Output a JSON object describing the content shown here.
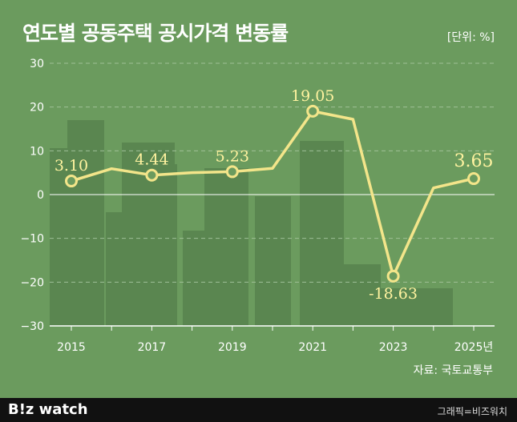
{
  "title": "연도별 공동주택 공시가격 변동률",
  "unit_label": "[단위: %]",
  "source": "자료: 국토교통부",
  "brand": "B!z watch",
  "credit": "그래픽=비즈워치",
  "colors": {
    "background": "#6b9b5e",
    "line": "#f3e58a",
    "marker_fill": "#6b9b5e",
    "label": "#fff3a0",
    "buildings": "#5a8650",
    "axis": "#ffffff",
    "grid": "#9fc096"
  },
  "chart_data": {
    "type": "line",
    "x": [
      2015,
      2016,
      2017,
      2018,
      2019,
      2020,
      2021,
      2022,
      2023,
      2024,
      2025
    ],
    "values": [
      3.1,
      5.9,
      4.44,
      5.02,
      5.23,
      5.98,
      19.05,
      17.2,
      -18.63,
      1.52,
      3.65
    ],
    "labeled_points": [
      {
        "x": 2015,
        "value": 3.1,
        "label": "3.10"
      },
      {
        "x": 2017,
        "value": 4.44,
        "label": "4.44"
      },
      {
        "x": 2019,
        "value": 5.23,
        "label": "5.23"
      },
      {
        "x": 2021,
        "value": 19.05,
        "label": "19.05"
      },
      {
        "x": 2023,
        "value": -18.63,
        "label": "-18.63"
      },
      {
        "x": 2025,
        "value": 3.65,
        "label": "3.65"
      }
    ],
    "x_ticks": [
      {
        "x": 2015,
        "label": "2015"
      },
      {
        "x": 2017,
        "label": "2017"
      },
      {
        "x": 2019,
        "label": "2019"
      },
      {
        "x": 2021,
        "label": "2021"
      },
      {
        "x": 2023,
        "label": "2023"
      },
      {
        "x": 2025,
        "label": "2025년"
      }
    ],
    "y_ticks": [
      {
        "value": 30,
        "label": "30"
      },
      {
        "value": 20,
        "label": "20"
      },
      {
        "value": 10,
        "label": "10"
      },
      {
        "value": 0,
        "label": "0"
      },
      {
        "value": -10,
        "label": "−10"
      },
      {
        "value": -20,
        "label": "−20"
      },
      {
        "value": -30,
        "label": "−30"
      }
    ],
    "ylim": [
      -30,
      30
    ],
    "xlim": [
      2015,
      2025
    ],
    "grid": true
  }
}
